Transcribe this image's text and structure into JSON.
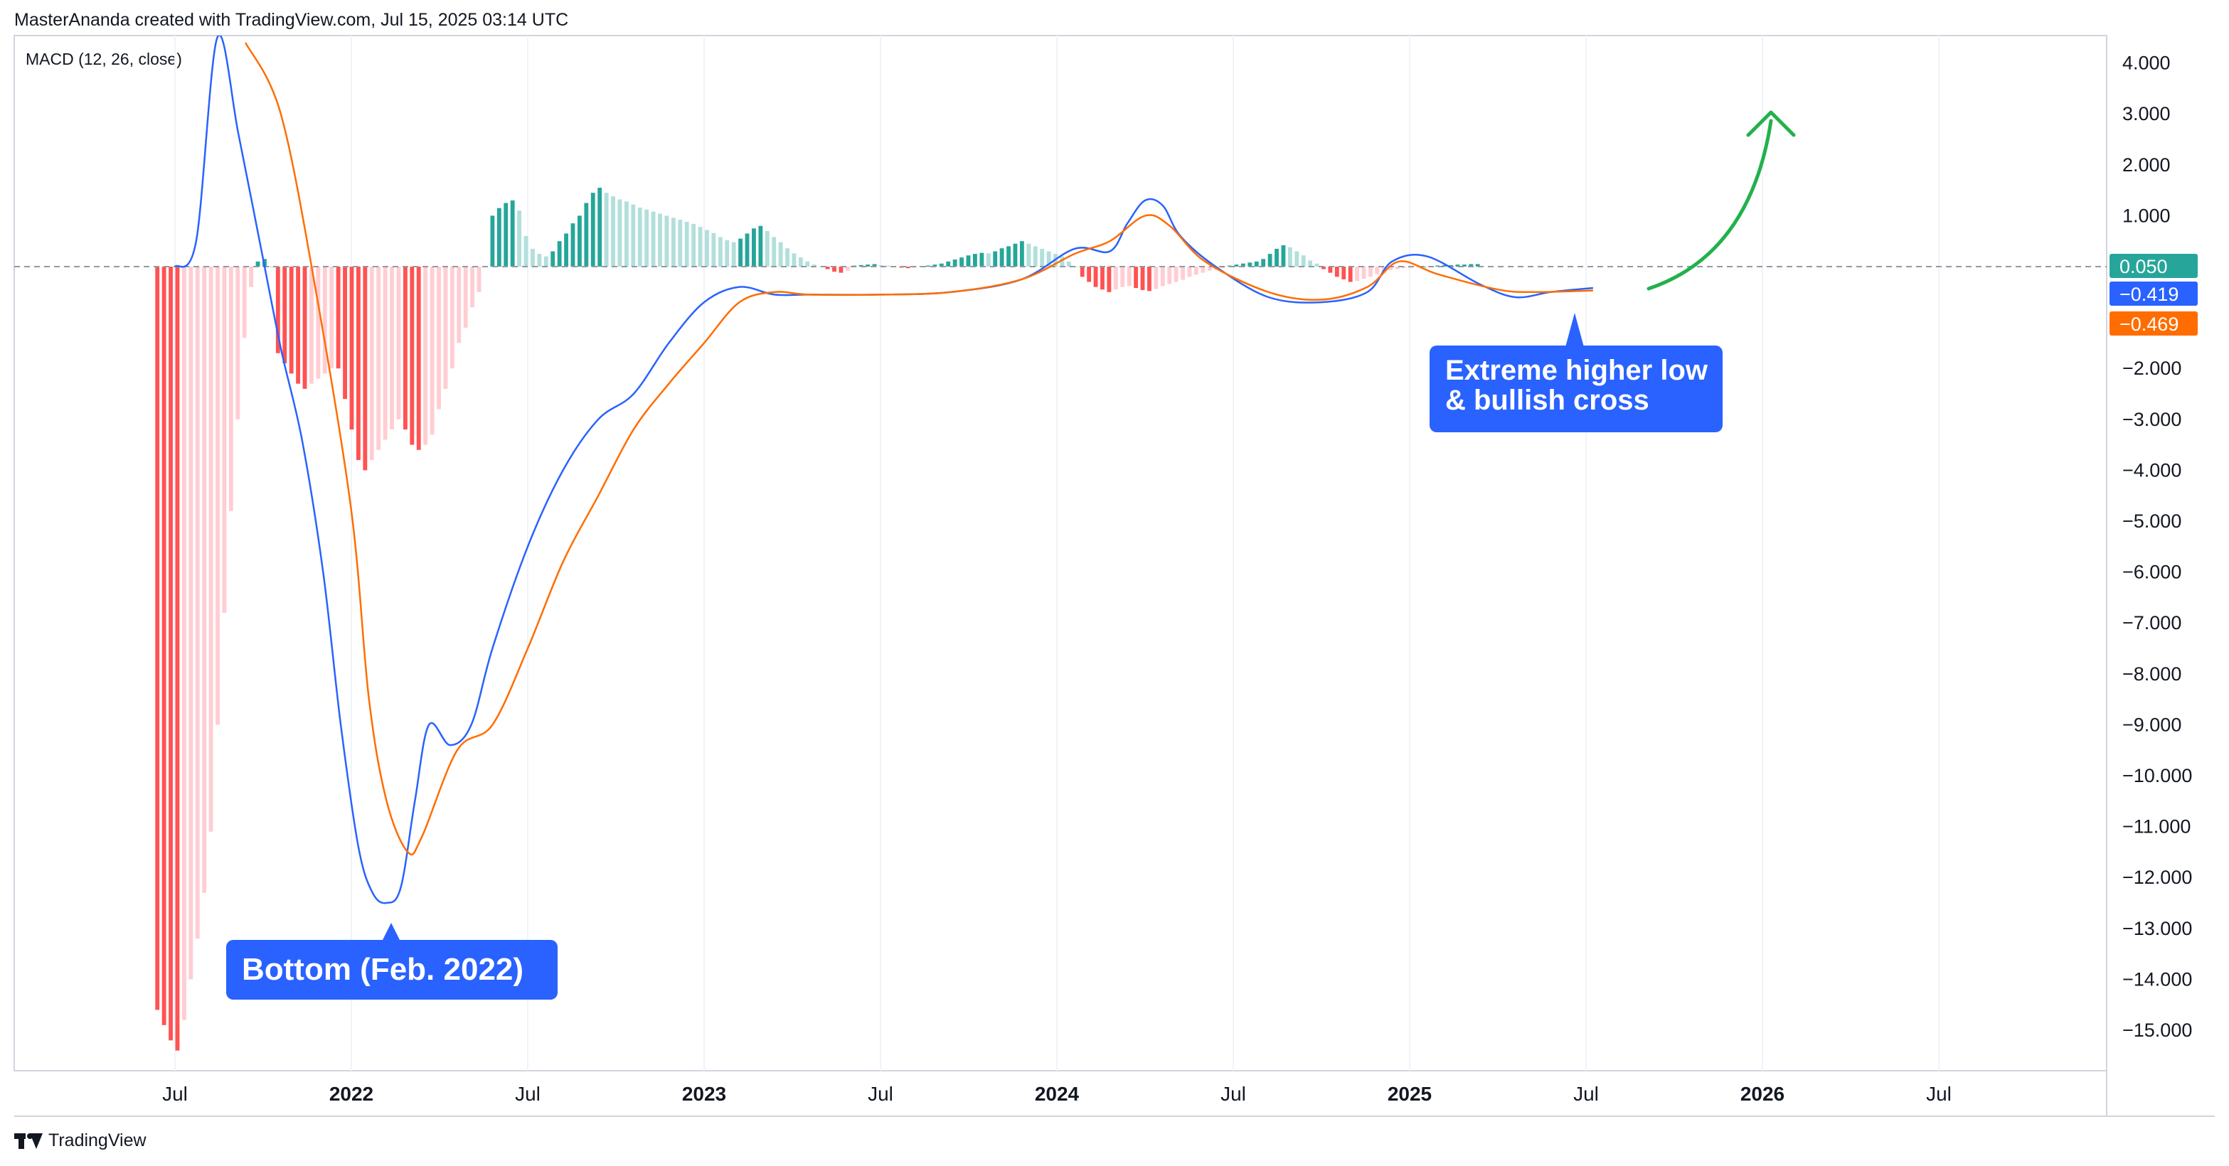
{
  "header": {
    "text": "MasterAnanda created with TradingView.com, Jul 15, 2025 03:14 UTC"
  },
  "indicator": {
    "label": "MACD (12, 26, close)"
  },
  "footer": {
    "brand": "TradingView"
  },
  "colors": {
    "macd_line": "#2962ff",
    "signal_line": "#ff6d00",
    "hist_pos_strong": "#26a69a",
    "hist_pos_weak": "#b2dfdb",
    "hist_neg_strong": "#ff5252",
    "hist_neg_weak": "#ffcdd2",
    "callout": "#2962ff",
    "arrow": "#22b14c"
  },
  "chart_data": {
    "type": "line",
    "ylim": [
      -15.8,
      4.4
    ],
    "y_ticks": [
      4,
      3,
      2,
      1,
      0,
      -1,
      -2,
      -3,
      -4,
      -5,
      -6,
      -7,
      -8,
      -9,
      -10,
      -11,
      -12,
      -13,
      -14,
      -15
    ],
    "y_tick_labels": [
      "4.000",
      "3.000",
      "2.000",
      "1.000",
      "",
      "",
      "−2.000",
      "−3.000",
      "−4.000",
      "−5.000",
      "−6.000",
      "−7.000",
      "−8.000",
      "−9.000",
      "−10.000",
      "−11.000",
      "−12.000",
      "−13.000",
      "−14.000",
      "−15.000"
    ],
    "x_ticks": [
      {
        "label": "Jul",
        "t": 2021.5,
        "bold": false
      },
      {
        "label": "2022",
        "t": 2022.0,
        "bold": true
      },
      {
        "label": "Jul",
        "t": 2022.5,
        "bold": false
      },
      {
        "label": "2023",
        "t": 2023.0,
        "bold": true
      },
      {
        "label": "Jul",
        "t": 2023.5,
        "bold": false
      },
      {
        "label": "2024",
        "t": 2024.0,
        "bold": true
      },
      {
        "label": "Jul",
        "t": 2024.5,
        "bold": false
      },
      {
        "label": "2025",
        "t": 2025.0,
        "bold": true
      },
      {
        "label": "Jul",
        "t": 2025.5,
        "bold": false
      },
      {
        "label": "2026",
        "t": 2026.0,
        "bold": true
      },
      {
        "label": "Jul",
        "t": 2026.5,
        "bold": false
      }
    ],
    "series": [
      {
        "key": "macd",
        "x": [
          2021.5,
          2021.56,
          2021.62,
          2021.68,
          2021.74,
          2021.8,
          2021.86,
          2021.92,
          2021.97,
          2022.02,
          2022.06,
          2022.1,
          2022.14,
          2022.18,
          2022.22,
          2022.28,
          2022.34,
          2022.4,
          2022.5,
          2022.6,
          2022.7,
          2022.8,
          2022.9,
          2023.0,
          2023.1,
          2023.2,
          2023.3,
          2023.5,
          2023.7,
          2023.9,
          2024.05,
          2024.15,
          2024.2,
          2024.25,
          2024.3,
          2024.35,
          2024.45,
          2024.6,
          2024.75,
          2024.88,
          2024.95,
          2025.05,
          2025.2,
          2025.3,
          2025.4,
          2025.52
        ],
        "y": [
          0.0,
          0.5,
          4.5,
          2.6,
          0.5,
          -1.6,
          -3.4,
          -6.0,
          -9.0,
          -11.4,
          -12.3,
          -12.5,
          -12.2,
          -10.5,
          -9.0,
          -9.4,
          -9.0,
          -7.5,
          -5.5,
          -4.0,
          -3.0,
          -2.5,
          -1.5,
          -0.7,
          -0.4,
          -0.55,
          -0.55,
          -0.55,
          -0.5,
          -0.25,
          0.35,
          0.3,
          0.85,
          1.3,
          1.2,
          0.6,
          0.0,
          -0.6,
          -0.7,
          -0.5,
          0.1,
          0.2,
          -0.35,
          -0.6,
          -0.5,
          -0.419
        ]
      },
      {
        "key": "signal",
        "x": [
          2021.7,
          2021.8,
          2021.9,
          2022.0,
          2022.05,
          2022.1,
          2022.16,
          2022.2,
          2022.3,
          2022.4,
          2022.5,
          2022.6,
          2022.7,
          2022.8,
          2022.9,
          2023.0,
          2023.1,
          2023.2,
          2023.3,
          2023.5,
          2023.7,
          2023.9,
          2024.05,
          2024.15,
          2024.25,
          2024.32,
          2024.42,
          2024.6,
          2024.75,
          2024.88,
          2024.97,
          2025.08,
          2025.25,
          2025.35,
          2025.52
        ],
        "y": [
          4.4,
          3.0,
          -0.5,
          -4.8,
          -8.5,
          -10.5,
          -11.5,
          -11.2,
          -9.5,
          -9.0,
          -7.5,
          -5.8,
          -4.5,
          -3.2,
          -2.3,
          -1.5,
          -0.7,
          -0.5,
          -0.55,
          -0.55,
          -0.5,
          -0.25,
          0.25,
          0.5,
          1.0,
          0.8,
          0.1,
          -0.5,
          -0.65,
          -0.4,
          0.1,
          -0.15,
          -0.45,
          -0.5,
          -0.469
        ]
      }
    ],
    "histogram": {
      "x_start": 2021.45,
      "x_step": 0.019,
      "values": [
        -14.6,
        -14.9,
        -15.2,
        -15.4,
        -14.8,
        -14.0,
        -13.2,
        -12.3,
        -11.1,
        -9.0,
        -6.8,
        -4.8,
        -3.0,
        -1.4,
        -0.4,
        0.1,
        0.15,
        0.0,
        -1.7,
        -1.9,
        -2.1,
        -2.3,
        -2.4,
        -2.3,
        -2.2,
        -2.1,
        -2.0,
        -2.0,
        -2.6,
        -3.2,
        -3.8,
        -4.0,
        -3.8,
        -3.6,
        -3.4,
        -3.2,
        -3.0,
        -3.2,
        -3.5,
        -3.6,
        -3.5,
        -3.3,
        -2.8,
        -2.4,
        -2.0,
        -1.5,
        -1.2,
        -0.8,
        -0.5,
        0.0,
        1.0,
        1.15,
        1.25,
        1.3,
        1.1,
        0.6,
        0.35,
        0.25,
        0.2,
        0.3,
        0.5,
        0.65,
        0.85,
        1.0,
        1.25,
        1.45,
        1.55,
        1.45,
        1.38,
        1.32,
        1.28,
        1.22,
        1.16,
        1.12,
        1.08,
        1.04,
        1.0,
        0.96,
        0.92,
        0.88,
        0.84,
        0.78,
        0.72,
        0.66,
        0.58,
        0.52,
        0.48,
        0.55,
        0.65,
        0.75,
        0.8,
        0.7,
        0.58,
        0.48,
        0.36,
        0.26,
        0.18,
        0.1,
        0.04,
        0.0,
        -0.05,
        -0.1,
        -0.12,
        -0.08,
        0.02,
        0.03,
        0.04,
        0.05,
        0.03,
        0.02,
        0.0,
        -0.02,
        -0.03,
        -0.02,
        0.01,
        0.02,
        0.04,
        0.06,
        0.1,
        0.14,
        0.18,
        0.22,
        0.25,
        0.27,
        0.26,
        0.3,
        0.36,
        0.4,
        0.45,
        0.5,
        0.45,
        0.4,
        0.35,
        0.3,
        0.25,
        0.2,
        0.1,
        0.0,
        -0.2,
        -0.3,
        -0.4,
        -0.45,
        -0.5,
        -0.45,
        -0.4,
        -0.38,
        -0.42,
        -0.46,
        -0.48,
        -0.44,
        -0.38,
        -0.34,
        -0.3,
        -0.26,
        -0.2,
        -0.16,
        -0.12,
        -0.08,
        -0.06,
        -0.03,
        0.02,
        0.04,
        0.06,
        0.08,
        0.1,
        0.15,
        0.25,
        0.35,
        0.42,
        0.38,
        0.3,
        0.22,
        0.12,
        0.06,
        -0.05,
        -0.12,
        -0.2,
        -0.25,
        -0.3,
        -0.28,
        -0.24,
        -0.2,
        -0.15,
        -0.1,
        -0.07,
        -0.05,
        -0.03,
        -0.02,
        -0.01,
        0.0,
        0.01,
        0.02,
        0.03,
        0.03,
        0.04,
        0.04,
        0.05,
        0.05
      ]
    },
    "zero_line": 0,
    "price_labels": [
      {
        "value": 0.05,
        "text": "0.050",
        "color": "#26a69a"
      },
      {
        "value": -0.419,
        "text": "−0.419",
        "color": "#2962ff"
      },
      {
        "value": -0.469,
        "text": "−0.469",
        "color": "#ff6d00"
      }
    ],
    "annotations": [
      {
        "text": "Bottom (Feb. 2022)",
        "anchor_x": 2022.1,
        "anchor_y": -12.9
      },
      {
        "text": "Extreme higher low\n& bullish cross",
        "anchor_x": 2025.45,
        "anchor_y": -0.9
      }
    ]
  }
}
